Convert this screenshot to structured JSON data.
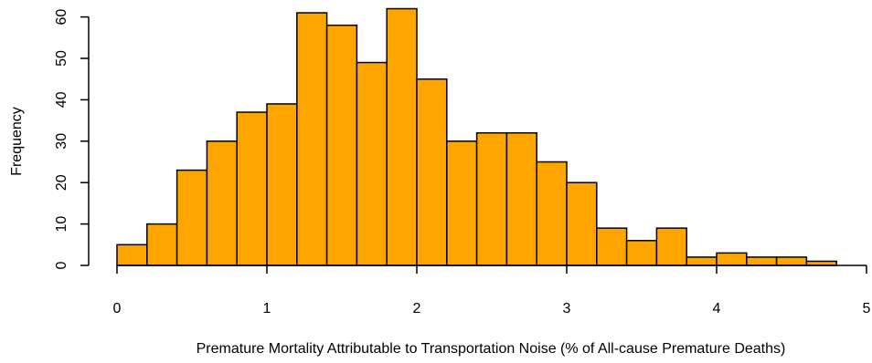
{
  "chart_data": {
    "type": "bar",
    "subtype": "histogram",
    "bin_edges": [
      0,
      0.2,
      0.4,
      0.6,
      0.8,
      1.0,
      1.2,
      1.4,
      1.6,
      1.8,
      2.0,
      2.2,
      2.4,
      2.6,
      2.8,
      3.0,
      3.2,
      3.4,
      3.6,
      3.8,
      4.0,
      4.2,
      4.4,
      4.6,
      4.8
    ],
    "values": [
      5,
      10,
      23,
      30,
      37,
      39,
      61,
      58,
      49,
      62,
      45,
      30,
      32,
      32,
      25,
      20,
      9,
      6,
      9,
      2,
      3,
      2,
      2,
      1
    ],
    "xlabel": "Premature Mortality Attributable to Transportation Noise (% of All-cause Premature Deaths)",
    "ylabel": "Frequency",
    "xlim": [
      0,
      5
    ],
    "ylim": [
      0,
      62
    ],
    "x_ticks": [
      "0",
      "1",
      "2",
      "3",
      "4",
      "5"
    ],
    "y_ticks": [
      "0",
      "10",
      "20",
      "30",
      "40",
      "50",
      "60"
    ],
    "grid": false,
    "bar_color": "#FFA500",
    "edge_color": "#000000"
  }
}
